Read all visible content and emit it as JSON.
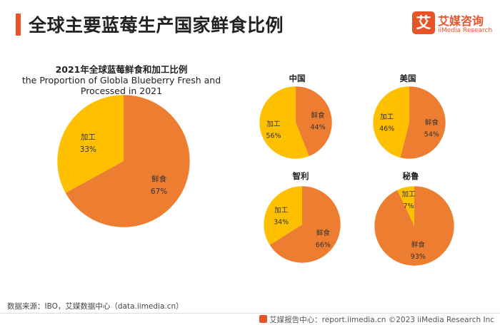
{
  "header": {
    "title": "全球主要蓝莓生产国家鲜食比例",
    "logo_cn": "艾媒咨询",
    "logo_en": "iiMedia Research",
    "logo_mark": "艾"
  },
  "colors": {
    "fresh": "#ed7d31",
    "processed": "#ffc000",
    "accent": "#e8542a"
  },
  "chart_data": [
    {
      "type": "pie",
      "title": "2021年全球蓝莓鲜食和加工比例",
      "subtitle": "the Proportion of Globla Blueberry Fresh and Processed  in 2021",
      "slices": [
        {
          "label": "鲜食",
          "value": 67,
          "value_label": "67%"
        },
        {
          "label": "加工",
          "value": 33,
          "value_label": "33%"
        }
      ]
    },
    {
      "type": "pie",
      "title": "中国",
      "slices": [
        {
          "label": "鲜食",
          "value": 44,
          "value_label": "44%"
        },
        {
          "label": "加工",
          "value": 56,
          "value_label": "56%"
        }
      ]
    },
    {
      "type": "pie",
      "title": "美国",
      "slices": [
        {
          "label": "鲜食",
          "value": 54,
          "value_label": "54%"
        },
        {
          "label": "加工",
          "value": 46,
          "value_label": "46%"
        }
      ]
    },
    {
      "type": "pie",
      "title": "智利",
      "slices": [
        {
          "label": "鲜食",
          "value": 66,
          "value_label": "66%"
        },
        {
          "label": "加工",
          "value": 34,
          "value_label": "34%"
        }
      ]
    },
    {
      "type": "pie",
      "title": "秘鲁",
      "slices": [
        {
          "label": "鲜食",
          "value": 93,
          "value_label": "93%"
        },
        {
          "label": "加工",
          "value": 7,
          "value_label": "7%"
        }
      ]
    }
  ],
  "source": "数据来源：IBO，艾媒数据中心（data.iimedia.cn）",
  "footer": "艾媒报告中心：report.iimedia.cn   ©2023  iiMedia Research  Inc"
}
